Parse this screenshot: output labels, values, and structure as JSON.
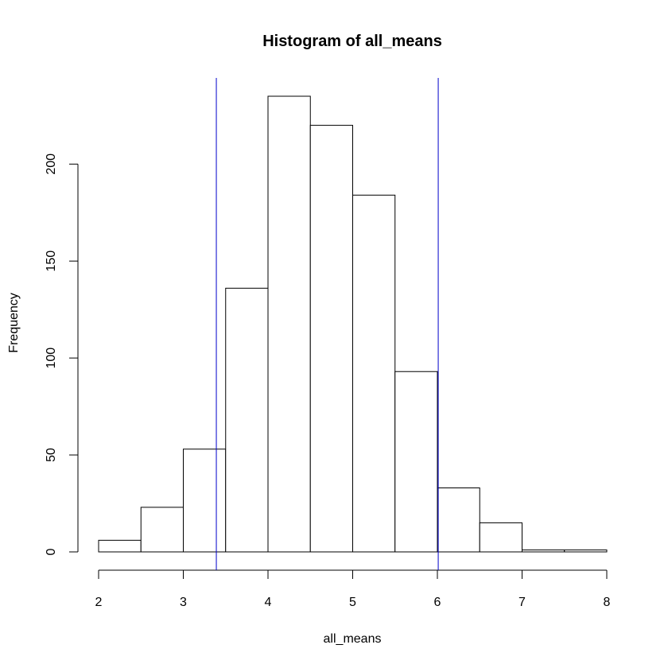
{
  "chart_data": {
    "type": "bar",
    "subtype": "histogram",
    "title": "Histogram of all_means",
    "xlabel": "all_means",
    "ylabel": "Frequency",
    "xlim": [
      2,
      8
    ],
    "ylim": [
      0,
      235
    ],
    "x_ticks": [
      2,
      3,
      4,
      5,
      6,
      7,
      8
    ],
    "y_ticks": [
      0,
      50,
      100,
      150,
      200
    ],
    "bins": [
      {
        "from": 2.0,
        "to": 2.5,
        "count": 6
      },
      {
        "from": 2.5,
        "to": 3.0,
        "count": 23
      },
      {
        "from": 3.0,
        "to": 3.5,
        "count": 53
      },
      {
        "from": 3.5,
        "to": 4.0,
        "count": 136
      },
      {
        "from": 4.0,
        "to": 4.5,
        "count": 235
      },
      {
        "from": 4.5,
        "to": 5.0,
        "count": 220
      },
      {
        "from": 5.0,
        "to": 5.5,
        "count": 184
      },
      {
        "from": 5.5,
        "to": 6.0,
        "count": 93
      },
      {
        "from": 6.0,
        "to": 6.5,
        "count": 33
      },
      {
        "from": 6.5,
        "to": 7.0,
        "count": 15
      },
      {
        "from": 7.0,
        "to": 7.5,
        "count": 1
      },
      {
        "from": 7.5,
        "to": 8.0,
        "count": 1
      }
    ],
    "vlines": [
      {
        "x": 3.39,
        "color": "#0000cc"
      },
      {
        "x": 6.01,
        "color": "#0000cc"
      }
    ],
    "bar_fill": "#ffffff",
    "bar_stroke": "#000000",
    "grid": false,
    "legend": "none"
  }
}
